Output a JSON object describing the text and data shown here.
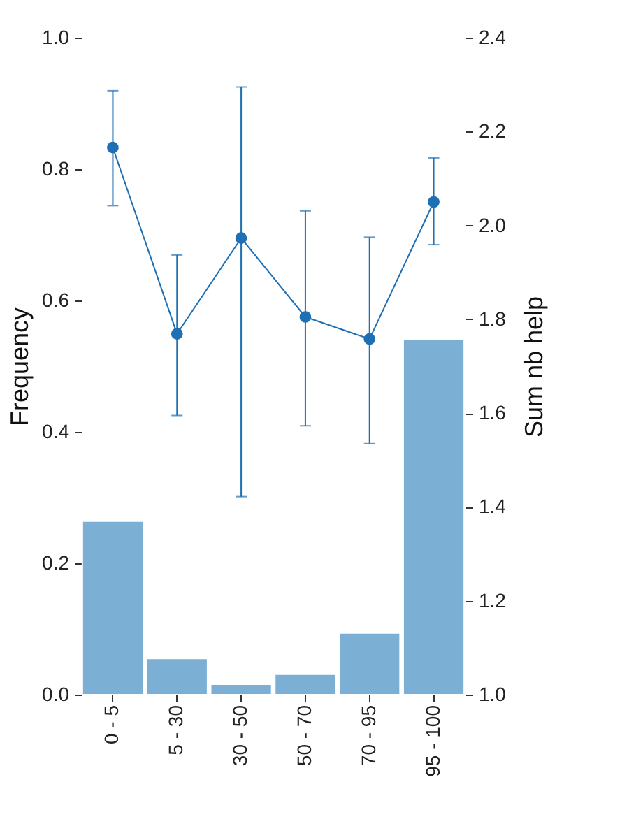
{
  "chart_data": {
    "type": "bar",
    "categories": [
      "0 - 5",
      "5 - 30",
      "30 - 50",
      "50 - 70",
      "70 - 95",
      "95 - 100"
    ],
    "ylabel": "Frequency",
    "y2label": "Sum nb help",
    "ylim": [
      0,
      1.0
    ],
    "yticks": [
      {
        "value": 0,
        "label": "0.0"
      },
      0.2,
      0.4,
      0.6,
      0.8,
      {
        "value": 1,
        "label": "1.0"
      }
    ],
    "y2lim": [
      1.0,
      2.4
    ],
    "y2ticks": [
      {
        "value": 1,
        "label": "1.0"
      },
      1.2,
      1.4,
      1.6,
      1.8,
      {
        "value": 2,
        "label": "2.0"
      },
      2.2,
      2.4
    ],
    "marker": "circle",
    "grid": false,
    "series": [
      {
        "color": "#7bafd4",
        "values": [
          0.264,
          0.055,
          0.016,
          0.031,
          0.094,
          0.541
        ]
      },
      {
        "type": "line",
        "axis": "y2",
        "color": "#1f6fb4",
        "values": [
          2.166,
          1.769,
          1.973,
          1.805,
          1.758,
          2.05
        ],
        "errors": [
          [
            2.042,
            2.287
          ],
          [
            1.595,
            1.937
          ],
          [
            1.422,
            2.295
          ],
          [
            1.573,
            2.031
          ],
          [
            1.535,
            1.975
          ],
          [
            1.959,
            2.144
          ]
        ]
      }
    ]
  }
}
